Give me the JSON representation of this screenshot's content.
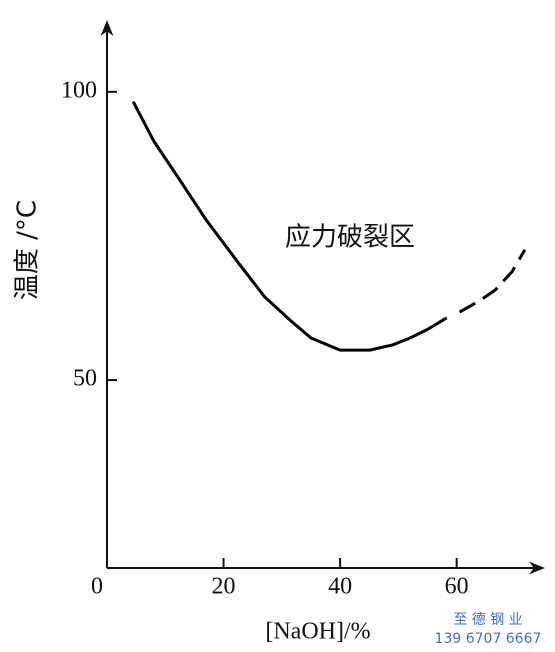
{
  "chart_data": {
    "type": "line",
    "x_label": "[NaOH]/%",
    "y_label": "温度 /°C",
    "annotation": "应力破裂区",
    "watermark": [
      "至 德 钢 业",
      "139 6707 6667"
    ],
    "xlim": [
      0,
      74.3
    ],
    "ylim": [
      17.4,
      111.6
    ],
    "xticks": [
      0,
      20,
      40,
      60
    ],
    "yticks": [
      50,
      100
    ],
    "series": [
      {
        "color": "#000000",
        "dashed": false,
        "x": [
          4.5,
          8,
          12.5,
          17,
          22.8,
          27,
          31.4,
          35,
          40,
          45.1,
          49,
          52,
          55,
          58.3
        ],
        "values": [
          98.3,
          91.5,
          84.7,
          77.8,
          70,
          64.5,
          60.4,
          57.3,
          55.2,
          55.2,
          56.1,
          57.3,
          58.8,
          60.8
        ]
      },
      {
        "color": "#000000",
        "dashed": true,
        "x": [
          60.5,
          64,
          66.6,
          69.5,
          71.7
        ],
        "values": [
          61.8,
          63.8,
          65.6,
          68.8,
          72.6
        ]
      }
    ]
  }
}
